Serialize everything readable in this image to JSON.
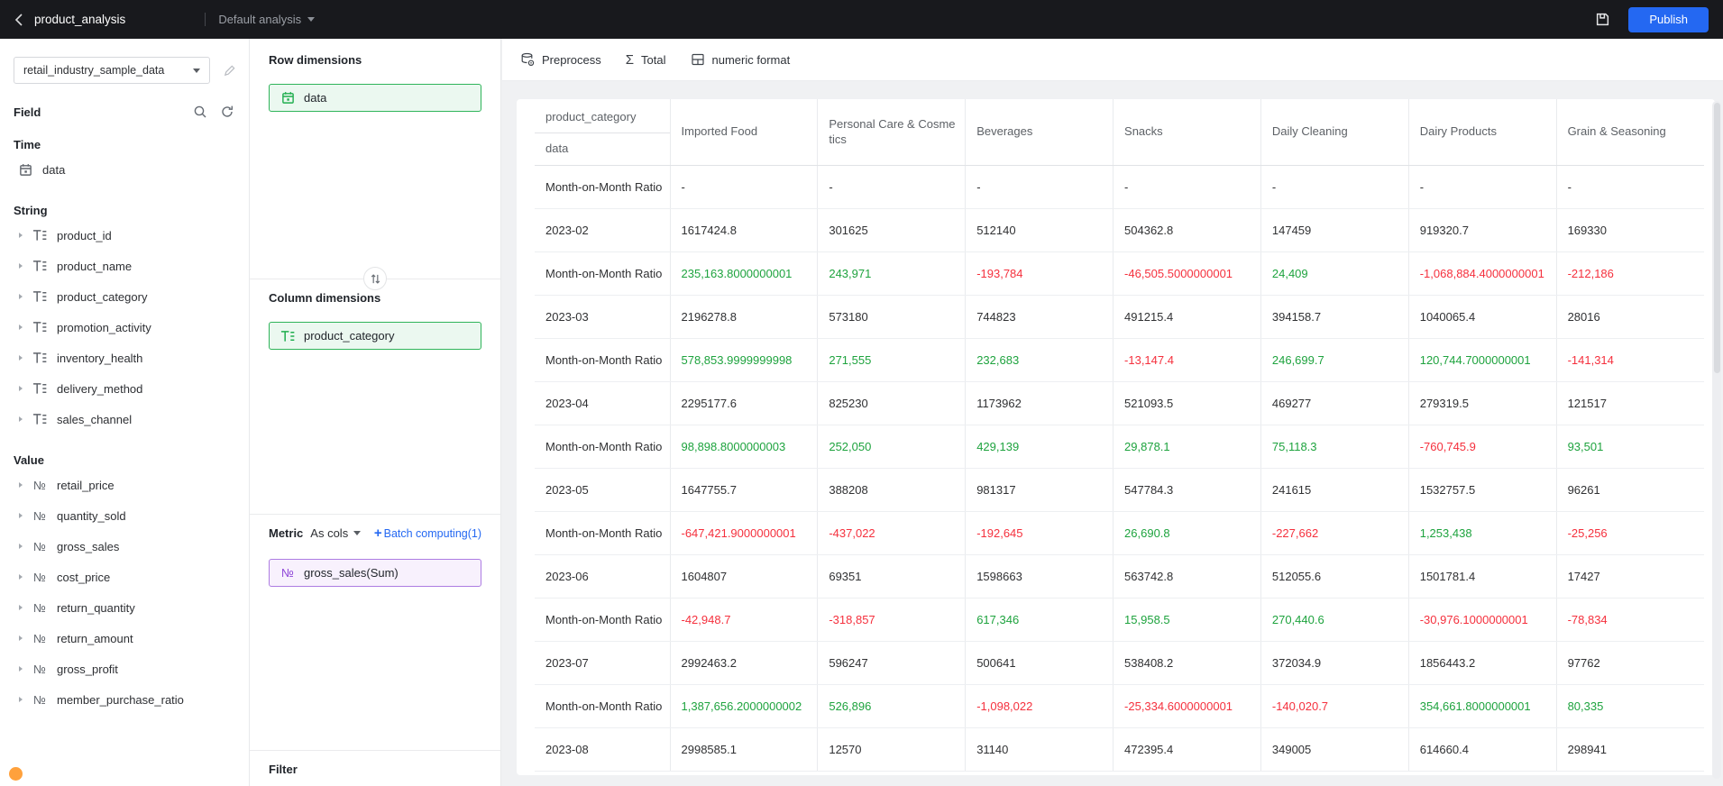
{
  "topbar": {
    "title": "product_analysis",
    "analysis_label": "Default analysis",
    "publish_label": "Publish"
  },
  "sidebar": {
    "dataset": "retail_industry_sample_data",
    "field_label": "Field",
    "sections": [
      {
        "title": "Time",
        "icon": "calendar",
        "expandable": false,
        "items": [
          "data"
        ]
      },
      {
        "title": "String",
        "icon": "text",
        "expandable": true,
        "items": [
          "product_id",
          "product_name",
          "product_category",
          "promotion_activity",
          "inventory_health",
          "delivery_method",
          "sales_channel"
        ]
      },
      {
        "title": "Value",
        "icon": "number",
        "expandable": true,
        "items": [
          "retail_price",
          "quantity_sold",
          "gross_sales",
          "cost_price",
          "return_quantity",
          "return_amount",
          "gross_profit",
          "member_purchase_ratio"
        ]
      }
    ]
  },
  "panel": {
    "row_dimensions_label": "Row dimensions",
    "row_chips": [
      {
        "label": "data",
        "icon": "calendar"
      }
    ],
    "column_dimensions_label": "Column dimensions",
    "column_chips": [
      {
        "label": "product_category",
        "icon": "text"
      }
    ],
    "metric_label": "Metric",
    "metric_mode": "As cols",
    "batch_plus": "+",
    "batch_computing_label": "Batch computing(1)",
    "metric_chips": [
      {
        "label": "gross_sales(Sum)",
        "icon": "number"
      }
    ],
    "filter_label": "Filter"
  },
  "toolbar": {
    "preprocess": "Preprocess",
    "total": "Total",
    "numeric_format": "numeric format"
  },
  "table": {
    "corner_top": "product_category",
    "corner_bottom": "data",
    "columns": [
      "Imported Food",
      "Personal Care & Cosmetics",
      "Beverages",
      "Snacks",
      "Daily Cleaning",
      "Dairy Products",
      "Grain & Seasoning"
    ],
    "rows": [
      {
        "label": "Month-on-Month Ratio",
        "type": "ratio",
        "values": [
          "-",
          "-",
          "-",
          "-",
          "-",
          "-",
          "-"
        ]
      },
      {
        "label": "2023-02",
        "type": "data",
        "values": [
          "1617424.8",
          "301625",
          "512140",
          "504362.8",
          "147459",
          "919320.7",
          "169330"
        ]
      },
      {
        "label": "Month-on-Month Ratio",
        "type": "ratio",
        "values": [
          "235,163.8000000001",
          "243,971",
          "-193,784",
          "-46,505.5000000001",
          "24,409",
          "-1,068,884.4000000001",
          "-212,186"
        ]
      },
      {
        "label": "2023-03",
        "type": "data",
        "values": [
          "2196278.8",
          "573180",
          "744823",
          "491215.4",
          "394158.7",
          "1040065.4",
          "28016"
        ]
      },
      {
        "label": "Month-on-Month Ratio",
        "type": "ratio",
        "values": [
          "578,853.9999999998",
          "271,555",
          "232,683",
          "-13,147.4",
          "246,699.7",
          "120,744.7000000001",
          "-141,314"
        ]
      },
      {
        "label": "2023-04",
        "type": "data",
        "values": [
          "2295177.6",
          "825230",
          "1173962",
          "521093.5",
          "469277",
          "279319.5",
          "121517"
        ]
      },
      {
        "label": "Month-on-Month Ratio",
        "type": "ratio",
        "values": [
          "98,898.8000000003",
          "252,050",
          "429,139",
          "29,878.1",
          "75,118.3",
          "-760,745.9",
          "93,501"
        ]
      },
      {
        "label": "2023-05",
        "type": "data",
        "values": [
          "1647755.7",
          "388208",
          "981317",
          "547784.3",
          "241615",
          "1532757.5",
          "96261"
        ]
      },
      {
        "label": "Month-on-Month Ratio",
        "type": "ratio",
        "values": [
          "-647,421.9000000001",
          "-437,022",
          "-192,645",
          "26,690.8",
          "-227,662",
          "1,253,438",
          "-25,256"
        ]
      },
      {
        "label": "2023-06",
        "type": "data",
        "values": [
          "1604807",
          "69351",
          "1598663",
          "563742.8",
          "512055.6",
          "1501781.4",
          "17427"
        ]
      },
      {
        "label": "Month-on-Month Ratio",
        "type": "ratio",
        "values": [
          "-42,948.7",
          "-318,857",
          "617,346",
          "15,958.5",
          "270,440.6",
          "-30,976.1000000001",
          "-78,834"
        ]
      },
      {
        "label": "2023-07",
        "type": "data",
        "values": [
          "2992463.2",
          "596247",
          "500641",
          "538408.2",
          "372034.9",
          "1856443.2",
          "97762"
        ]
      },
      {
        "label": "Month-on-Month Ratio",
        "type": "ratio",
        "values": [
          "1,387,656.2000000002",
          "526,896",
          "-1,098,022",
          "-25,334.6000000001",
          "-140,020.7",
          "354,661.8000000001",
          "80,335"
        ]
      },
      {
        "label": "2023-08",
        "type": "data",
        "values": [
          "2998585.1",
          "12570",
          "31140",
          "472395.4",
          "349005",
          "614660.4",
          "298941"
        ]
      }
    ]
  },
  "colors": {
    "accent": "#2468f2",
    "positive_green": "#1ea33e",
    "negative_red": "#f5303d",
    "chip_green_bg": "#ebf8f0",
    "chip_green_border": "#2fb45a",
    "chip_purple_bg": "#f8f1fd",
    "chip_purple_border": "#ad7ce2",
    "topbar_bg": "#18191d"
  }
}
